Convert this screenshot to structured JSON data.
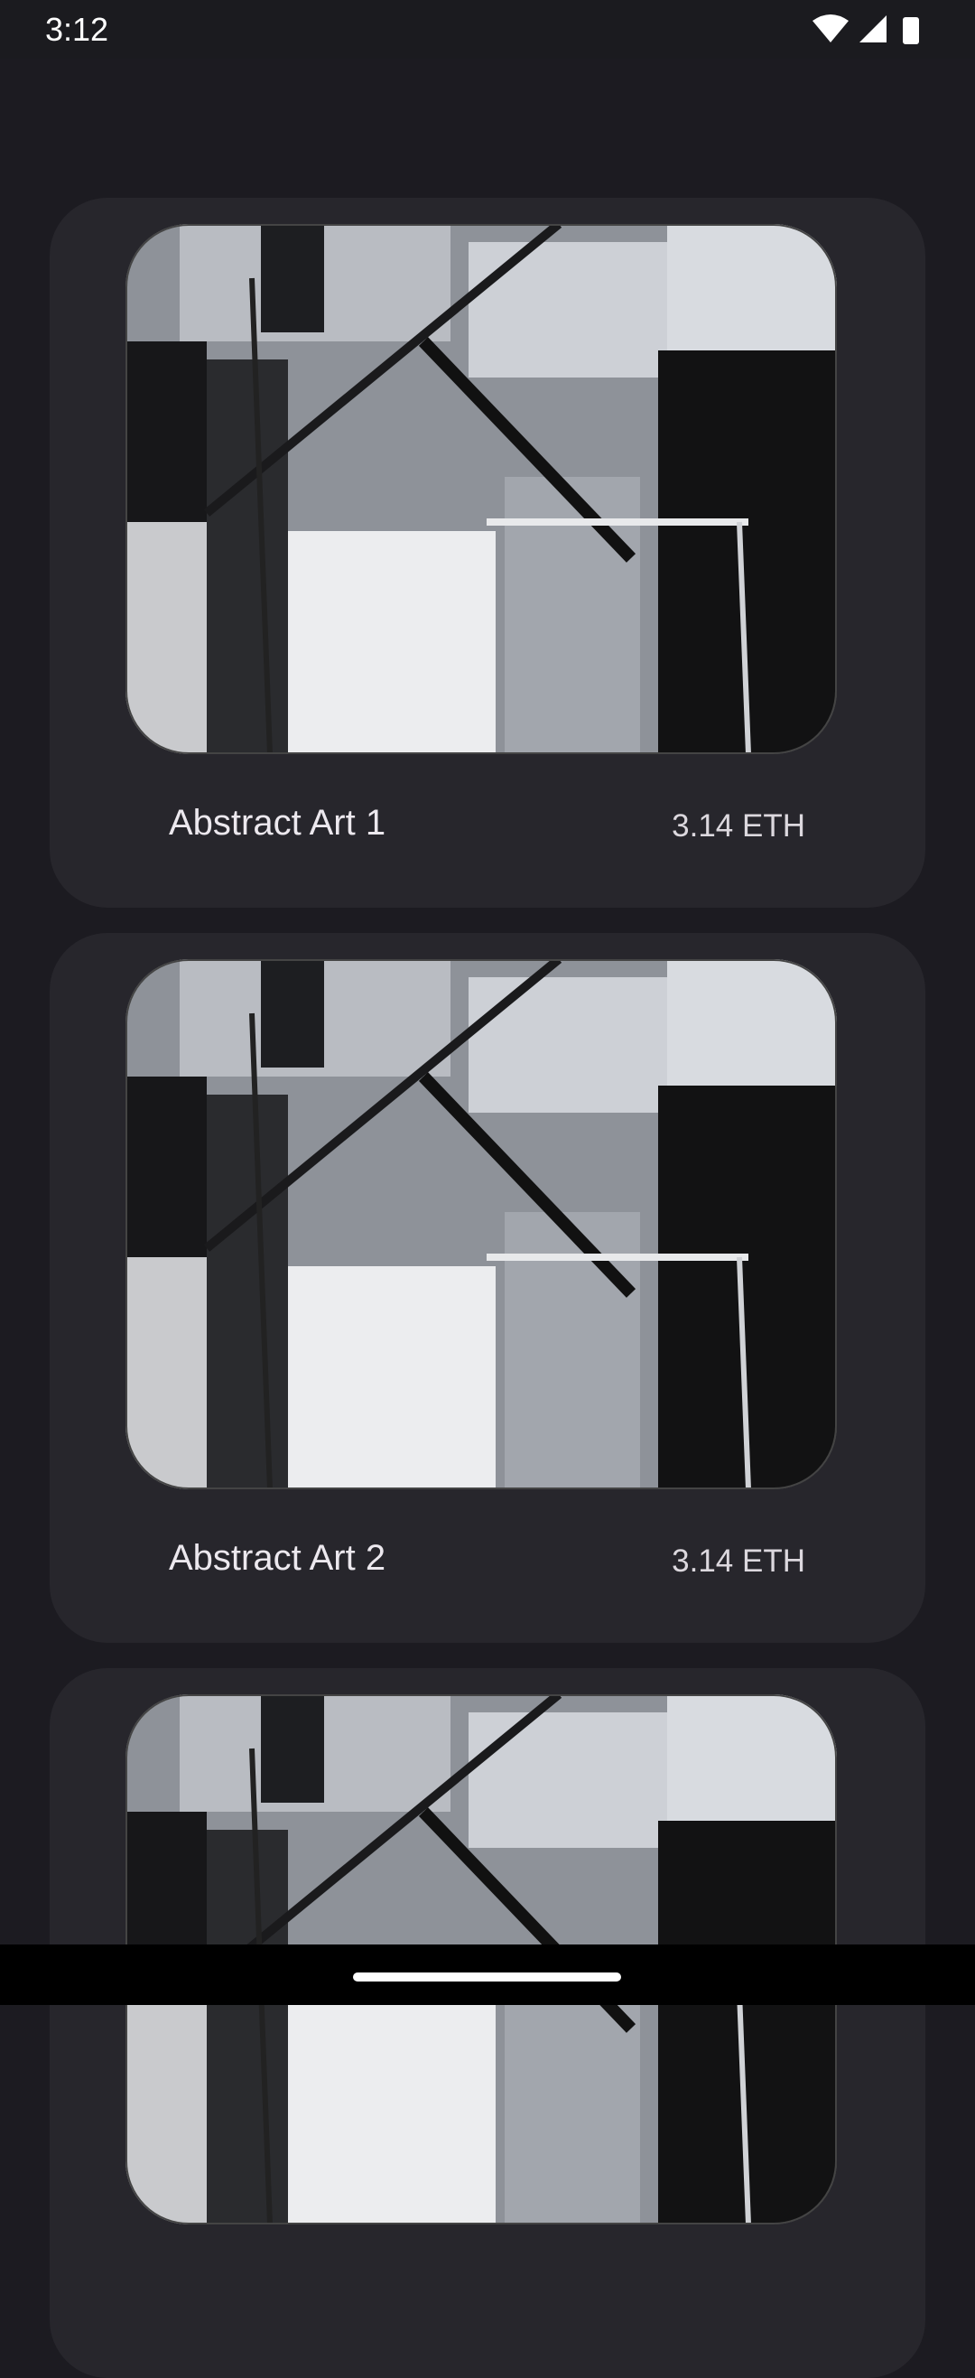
{
  "status_bar": {
    "time": "3:12"
  },
  "cards": [
    {
      "title": "Abstract Art 1",
      "price": "3.14 ETH"
    },
    {
      "title": "Abstract Art 2",
      "price": "3.14 ETH"
    },
    {}
  ]
}
